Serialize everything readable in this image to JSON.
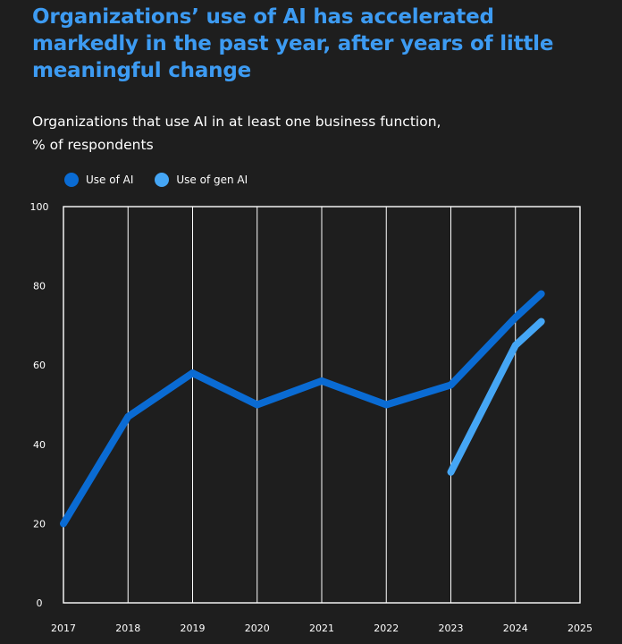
{
  "header": {
    "headline": "Organizations’ use of AI has accelerated markedly in the past year, after years of little meaningful change",
    "subtitle_line1": "Organizations that use AI in at least one business function,",
    "subtitle_line2": "% of respondents"
  },
  "colors": {
    "background": "#1e1e1e",
    "headline": "#3d9bf2",
    "use_of_ai": "#0a6bd3",
    "use_of_gen_ai": "#45a6f5",
    "grid": "#ffffff"
  },
  "chart_data": {
    "type": "line",
    "title": "Organizations that use AI in at least one business function, % of respondents",
    "xlabel": "",
    "ylabel": "",
    "x_ticks": [
      "2017",
      "2018",
      "2019",
      "2020",
      "2021",
      "2022",
      "2023",
      "2024",
      "2025"
    ],
    "y_ticks": [
      "0",
      "20",
      "40",
      "60",
      "80",
      "100"
    ],
    "xlim": [
      2017,
      2025
    ],
    "ylim": [
      0,
      100
    ],
    "grid": true,
    "legend_position": "top-left",
    "series": [
      {
        "name": "Use of AI",
        "color": "#0a6bd3",
        "points": [
          {
            "x": 2017,
            "y": 20
          },
          {
            "x": 2018,
            "y": 47
          },
          {
            "x": 2019,
            "y": 58
          },
          {
            "x": 2020,
            "y": 50
          },
          {
            "x": 2021,
            "y": 56
          },
          {
            "x": 2022,
            "y": 50
          },
          {
            "x": 2023,
            "y": 55
          },
          {
            "x": 2024,
            "y": 72
          },
          {
            "x": 2024.4,
            "y": 78
          }
        ]
      },
      {
        "name": "Use of gen AI",
        "color": "#45a6f5",
        "points": [
          {
            "x": 2023,
            "y": 33
          },
          {
            "x": 2024,
            "y": 65
          },
          {
            "x": 2024.4,
            "y": 71
          }
        ]
      }
    ]
  }
}
